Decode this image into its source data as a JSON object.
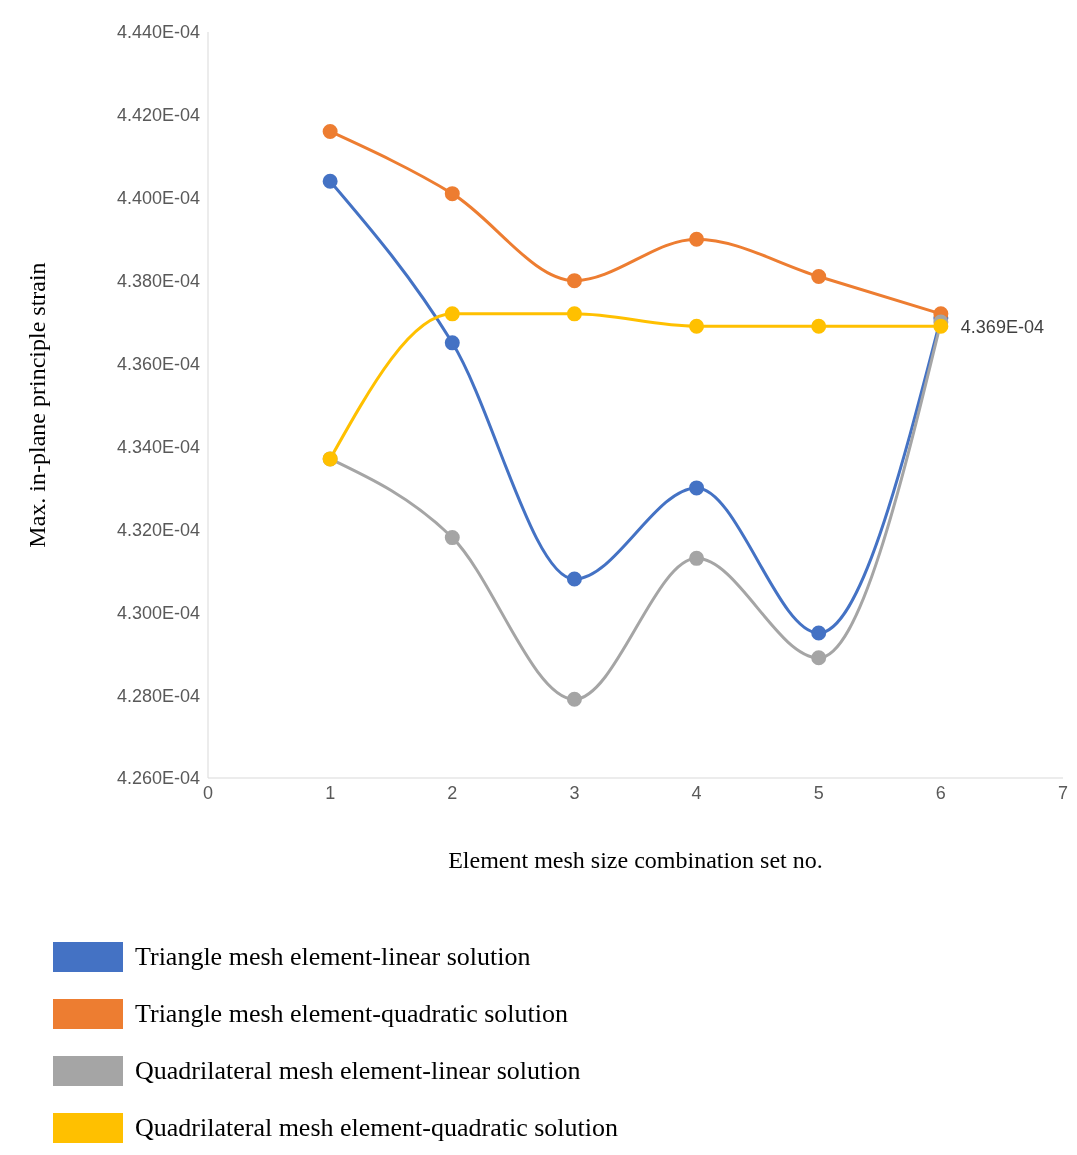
{
  "chart_data": {
    "type": "line",
    "xlabel": "Element mesh size combination set no.",
    "ylabel": "Max. in-plane principle strain",
    "x": [
      1,
      2,
      3,
      4,
      5,
      6
    ],
    "xlim": [
      0,
      7
    ],
    "xticks": [
      0,
      1,
      2,
      3,
      4,
      5,
      6,
      7
    ],
    "ylim": [
      0.000426,
      0.000444
    ],
    "yticks": [
      {
        "value": 0.000426,
        "label": "4.260E-04"
      },
      {
        "value": 0.000428,
        "label": "4.280E-04"
      },
      {
        "value": 0.00043,
        "label": "4.300E-04"
      },
      {
        "value": 0.000432,
        "label": "4.320E-04"
      },
      {
        "value": 0.000434,
        "label": "4.340E-04"
      },
      {
        "value": 0.000436,
        "label": "4.360E-04"
      },
      {
        "value": 0.000438,
        "label": "4.380E-04"
      },
      {
        "value": 0.00044,
        "label": "4.400E-04"
      },
      {
        "value": 0.000442,
        "label": "4.420E-04"
      },
      {
        "value": 0.000444,
        "label": "4.440E-04"
      }
    ],
    "series": [
      {
        "name": "Triangle mesh element-linear solution",
        "color": "#4472c4",
        "values": [
          0.0004404,
          0.0004365,
          0.0004308,
          0.000433,
          0.0004295,
          0.0004371
        ]
      },
      {
        "name": "Triangle mesh element-quadratic solution",
        "color": "#ed7d31",
        "values": [
          0.0004416,
          0.0004401,
          0.000438,
          0.000439,
          0.0004381,
          0.0004372
        ]
      },
      {
        "name": "Quadrilateral mesh element-linear solution",
        "color": "#a5a5a5",
        "values": [
          0.0004337,
          0.0004318,
          0.0004279,
          0.0004313,
          0.0004289,
          0.000437
        ]
      },
      {
        "name": "Quadrilateral mesh element-quadratic solution",
        "color": "#ffc000",
        "values": [
          0.0004337,
          0.0004372,
          0.0004372,
          0.0004369,
          0.0004369,
          0.0004369
        ],
        "value_labels": [
          null,
          null,
          null,
          null,
          null,
          "4.369E-04"
        ]
      }
    ],
    "marker": "circle",
    "line_style": "solid",
    "legend": "bottom"
  }
}
